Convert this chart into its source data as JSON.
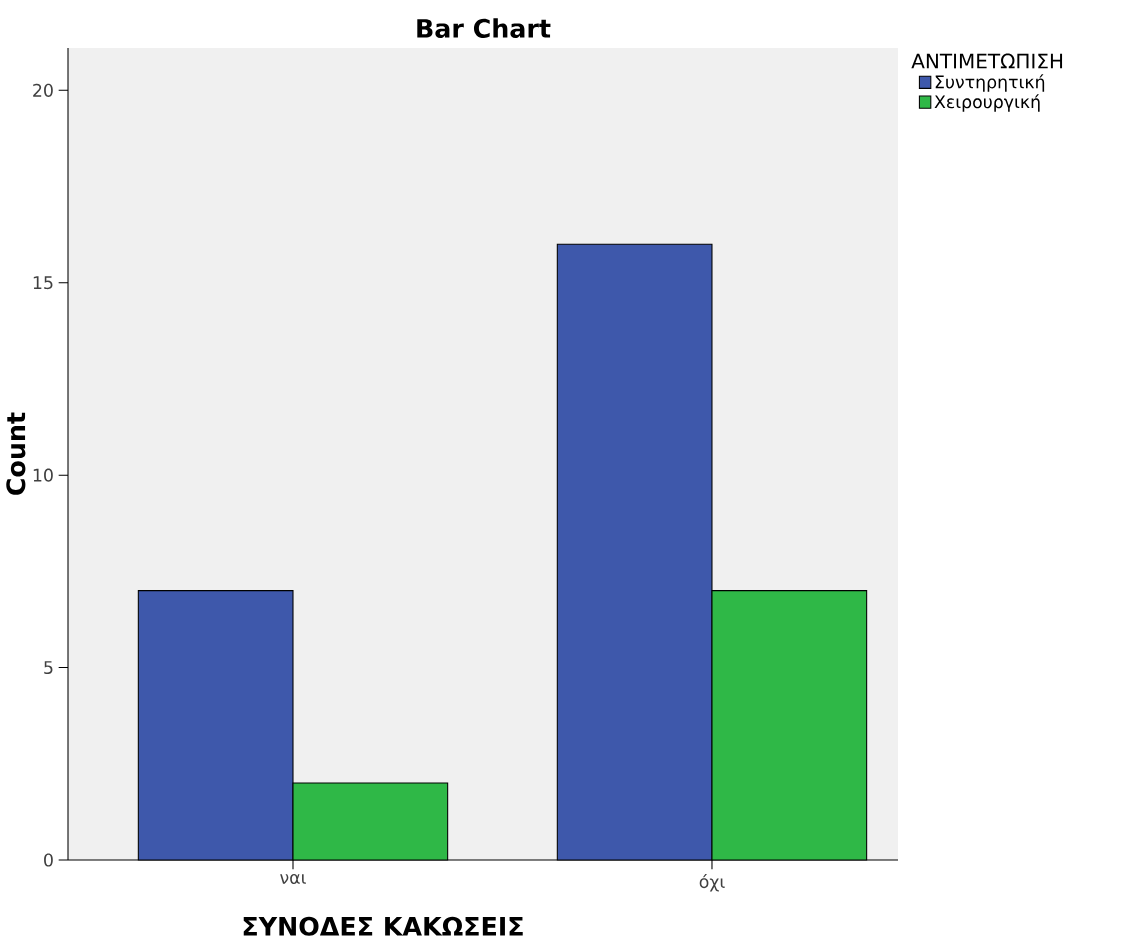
{
  "chart_data": {
    "type": "bar",
    "title": "Bar Chart",
    "xlabel": "ΣΥΝΟΔΕΣ ΚΑΚΩΣΕΙΣ",
    "ylabel": "Count",
    "legend_title": "ΑΝΤΙΜΕΤΩΠΙΣΗ",
    "categories": [
      "ναι",
      "όχι"
    ],
    "series": [
      {
        "name": "Συντηρητική",
        "color": "#3e58ab",
        "values": [
          7,
          16
        ]
      },
      {
        "name": "Χειρουργική",
        "color": "#2fb847",
        "values": [
          2,
          7
        ]
      }
    ],
    "ylim": [
      0,
      21.1
    ],
    "yticks": [
      0,
      5,
      10,
      15,
      20
    ],
    "grid": false,
    "legend": "top right"
  }
}
